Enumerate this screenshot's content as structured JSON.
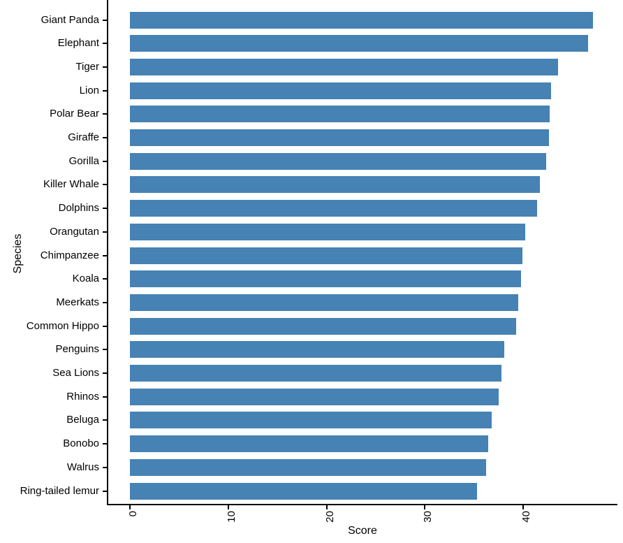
{
  "chart_data": {
    "type": "bar",
    "orientation": "horizontal",
    "title": "",
    "xlabel": "Score",
    "ylabel": "Species",
    "categories": [
      "Giant Panda",
      "Elephant",
      "Tiger",
      "Lion",
      "Polar Bear",
      "Giraffe",
      "Gorilla",
      "Killer Whale",
      "Dolphins",
      "Orangutan",
      "Chimpanzee",
      "Koala",
      "Meerkats",
      "Common Hippo",
      "Penguins",
      "Sea Lions",
      "Rhinos",
      "Beluga",
      "Bonobo",
      "Walrus",
      "Ring-tailed lemur"
    ],
    "values": [
      47.1,
      46.6,
      43.5,
      42.8,
      42.7,
      42.6,
      42.3,
      41.7,
      41.4,
      40.2,
      39.9,
      39.8,
      39.5,
      39.3,
      38.1,
      37.8,
      37.5,
      36.8,
      36.4,
      36.2,
      35.3
    ],
    "x_ticks": [
      0,
      10,
      20,
      30,
      40
    ],
    "xlim": [
      0,
      49.5
    ],
    "grid": false,
    "legend": false,
    "bar_color": "#4682B4",
    "axis_color": "#000000",
    "text_color": "#000000",
    "background_color": "#ffffff"
  }
}
